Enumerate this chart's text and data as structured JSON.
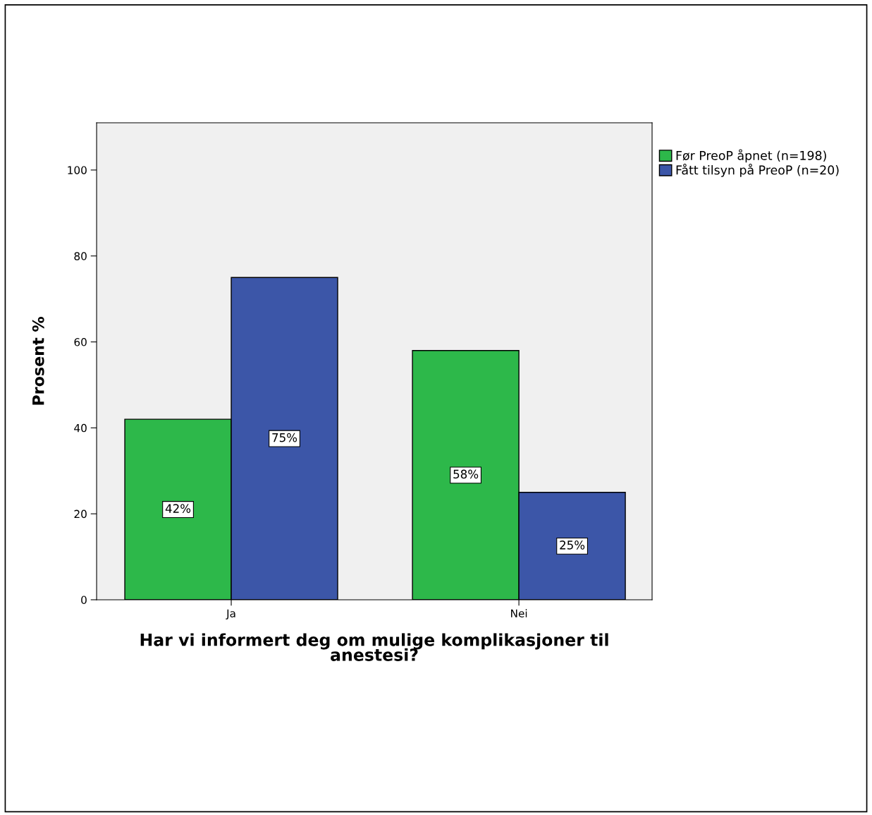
{
  "chart_data": {
    "type": "bar",
    "xlabel": "Har vi informert deg om mulige komplikasjoner til\nanestesi?",
    "ylabel": "Prosent %",
    "categories": [
      "Ja",
      "Nei"
    ],
    "series": [
      {
        "name": "Før PreoP åpnet (n=198)",
        "color": "#2db84a",
        "values": [
          42,
          58
        ],
        "value_labels": [
          "42%",
          "58%"
        ]
      },
      {
        "name": "Fått tilsyn på PreoP (n=20)",
        "color": "#3c56a8",
        "values": [
          75,
          25
        ],
        "value_labels": [
          "75%",
          "25%"
        ]
      }
    ],
    "ylim": [
      0,
      111
    ],
    "yticks": [
      0,
      20,
      40,
      60,
      80,
      100
    ],
    "grid": false,
    "legend": "top right"
  }
}
